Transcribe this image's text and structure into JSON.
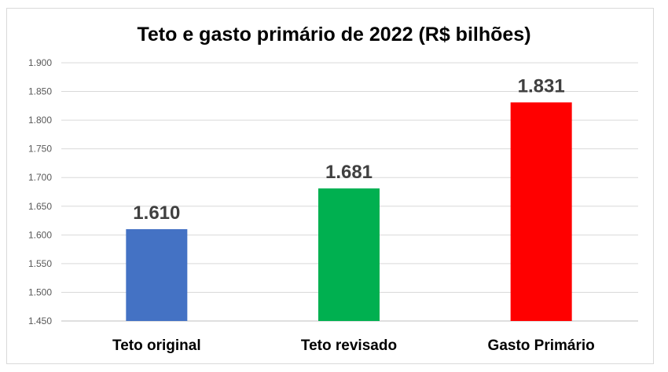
{
  "chart_data": {
    "type": "bar",
    "title": "Teto e gasto primário de 2022 (R$ bilhões)",
    "categories": [
      "Teto original",
      "Teto revisado",
      "Gasto Primário"
    ],
    "values": [
      1610,
      1681,
      1831
    ],
    "data_labels": [
      "1.610",
      "1.681",
      "1.831"
    ],
    "colors": [
      "#4472c4",
      "#00b050",
      "#ff0000"
    ],
    "ylim": [
      1450,
      1900
    ],
    "yticks": [
      1450,
      1500,
      1550,
      1600,
      1650,
      1700,
      1750,
      1800,
      1850,
      1900
    ],
    "ytick_labels": [
      "1.450",
      "1.500",
      "1.550",
      "1.600",
      "1.650",
      "1.700",
      "1.750",
      "1.800",
      "1.850",
      "1.900"
    ],
    "grid": true,
    "xlabel": "",
    "ylabel": ""
  }
}
